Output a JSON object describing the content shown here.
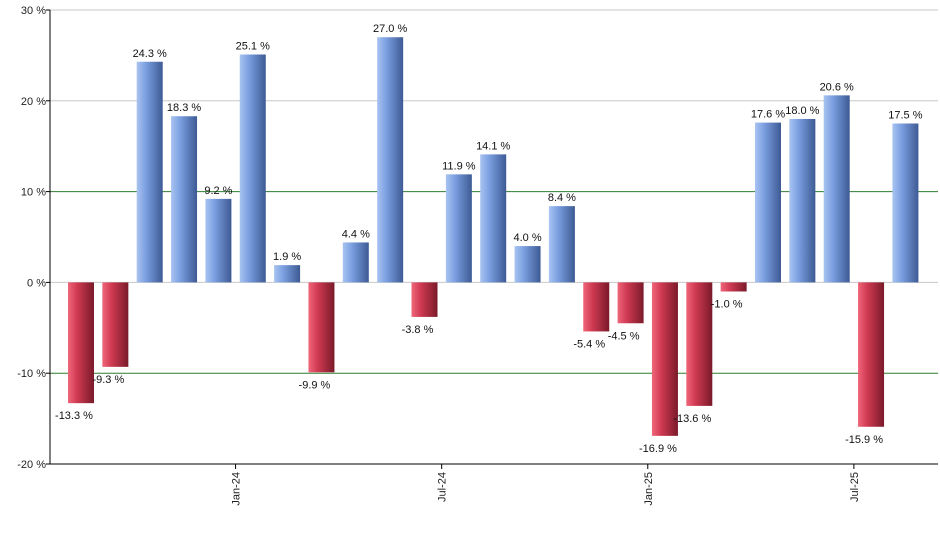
{
  "chart_data": {
    "type": "bar",
    "title": "",
    "xlabel": "",
    "ylabel": "",
    "ylim": [
      -20,
      30
    ],
    "yticks": [
      -20,
      -10,
      0,
      10,
      20,
      30
    ],
    "ytick_labels": [
      "-20 %",
      "-10 %",
      "0 %",
      "10 %",
      "20 %",
      "30 %"
    ],
    "value_suffix": " %",
    "x_tick_labels": [
      {
        "label": "Jan-24",
        "after_bar": 4
      },
      {
        "label": "Jul-24",
        "after_bar": 10
      },
      {
        "label": "Jan-25",
        "after_bar": 16
      },
      {
        "label": "Jul-25",
        "after_bar": 22
      }
    ],
    "values": [
      -13.3,
      -9.3,
      24.3,
      18.3,
      9.2,
      25.1,
      1.9,
      -9.9,
      4.4,
      27.0,
      -3.8,
      11.9,
      14.1,
      4.0,
      8.4,
      -5.4,
      -4.5,
      -16.9,
      -13.6,
      -1.0,
      17.6,
      18.0,
      20.6,
      -15.9,
      17.5
    ],
    "grid": true,
    "highlight_lines": [
      10,
      -10
    ],
    "colors": {
      "positive_light": "#a9c4f2",
      "positive_mid": "#7b9fe0",
      "positive_dark": "#3d5a94",
      "negative_light": "#f0667a",
      "negative_mid": "#d03a52",
      "negative_dark": "#7a1a2a",
      "gridline": "#c8c8c8",
      "highlight_line": "#2e7d2e",
      "axis": "#000000"
    }
  }
}
